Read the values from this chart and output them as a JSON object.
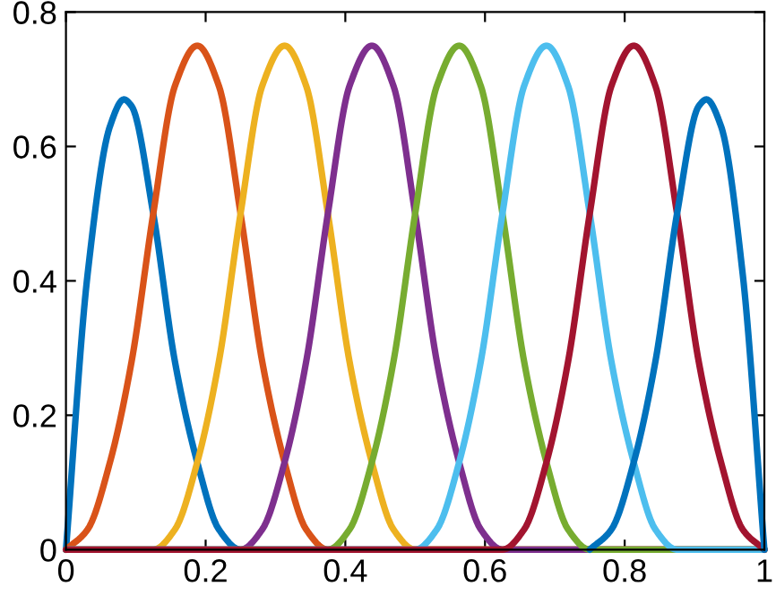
{
  "chart_data": {
    "type": "line",
    "xlim": [
      0,
      1
    ],
    "ylim": [
      0,
      0.8
    ],
    "xticks": [
      0,
      0.2,
      0.4,
      0.6,
      0.8,
      1
    ],
    "yticks": [
      0,
      0.2,
      0.4,
      0.6,
      0.8
    ],
    "grid": false,
    "marker": "none",
    "line_style": "solid",
    "series": [
      {
        "color": "#0072bd",
        "x": [
          0,
          0.031,
          0.063,
          0.083,
          0.094,
          0.125,
          0.156,
          0.188,
          0.219,
          0.25,
          1
        ],
        "values": [
          0,
          0.41,
          0.63,
          0.67,
          0.66,
          0.5,
          0.28,
          0.13,
          0.03,
          0,
          0
        ]
      },
      {
        "color": "#d95319",
        "x": [
          0,
          0.031,
          0.063,
          0.094,
          0.125,
          0.156,
          0.188,
          0.219,
          0.25,
          0.281,
          0.313,
          0.344,
          0.375,
          1
        ],
        "values": [
          0,
          0.03,
          0.13,
          0.28,
          0.5,
          0.69,
          0.75,
          0.69,
          0.5,
          0.28,
          0.13,
          0.03,
          0,
          0
        ]
      },
      {
        "color": "#edb120",
        "x": [
          0,
          0.125,
          0.156,
          0.188,
          0.219,
          0.25,
          0.281,
          0.313,
          0.344,
          0.375,
          0.406,
          0.438,
          0.469,
          0.5,
          1
        ],
        "values": [
          0,
          0,
          0.03,
          0.13,
          0.28,
          0.5,
          0.69,
          0.75,
          0.69,
          0.5,
          0.28,
          0.13,
          0.03,
          0,
          0
        ]
      },
      {
        "color": "#7e2f8e",
        "x": [
          0,
          0.25,
          0.281,
          0.313,
          0.344,
          0.375,
          0.406,
          0.438,
          0.469,
          0.5,
          0.531,
          0.563,
          0.594,
          0.625,
          1
        ],
        "values": [
          0,
          0,
          0.03,
          0.13,
          0.28,
          0.5,
          0.69,
          0.75,
          0.69,
          0.5,
          0.28,
          0.13,
          0.03,
          0,
          0
        ]
      },
      {
        "color": "#77ac30",
        "x": [
          0,
          0.375,
          0.406,
          0.438,
          0.469,
          0.5,
          0.531,
          0.563,
          0.594,
          0.625,
          0.656,
          0.688,
          0.719,
          0.75,
          1
        ],
        "values": [
          0,
          0,
          0.03,
          0.13,
          0.28,
          0.5,
          0.69,
          0.75,
          0.69,
          0.5,
          0.28,
          0.13,
          0.03,
          0,
          0
        ]
      },
      {
        "color": "#4dbeee",
        "x": [
          0,
          0.5,
          0.531,
          0.563,
          0.594,
          0.625,
          0.656,
          0.688,
          0.719,
          0.75,
          0.781,
          0.813,
          0.844,
          0.875,
          1
        ],
        "values": [
          0,
          0,
          0.03,
          0.13,
          0.28,
          0.5,
          0.69,
          0.75,
          0.69,
          0.5,
          0.28,
          0.13,
          0.03,
          0,
          0
        ]
      },
      {
        "color": "#a2142f",
        "x": [
          0,
          0.625,
          0.656,
          0.688,
          0.719,
          0.75,
          0.781,
          0.813,
          0.844,
          0.875,
          0.906,
          0.938,
          0.969,
          1
        ],
        "values": [
          0,
          0,
          0.03,
          0.13,
          0.28,
          0.5,
          0.69,
          0.75,
          0.69,
          0.5,
          0.28,
          0.13,
          0.03,
          0
        ]
      },
      {
        "color": "#0072bd",
        "x": [
          0.75,
          0.781,
          0.813,
          0.844,
          0.875,
          0.906,
          0.917,
          0.938,
          0.969,
          1
        ],
        "values": [
          0,
          0.03,
          0.13,
          0.28,
          0.5,
          0.66,
          0.67,
          0.63,
          0.41,
          0
        ]
      }
    ]
  }
}
